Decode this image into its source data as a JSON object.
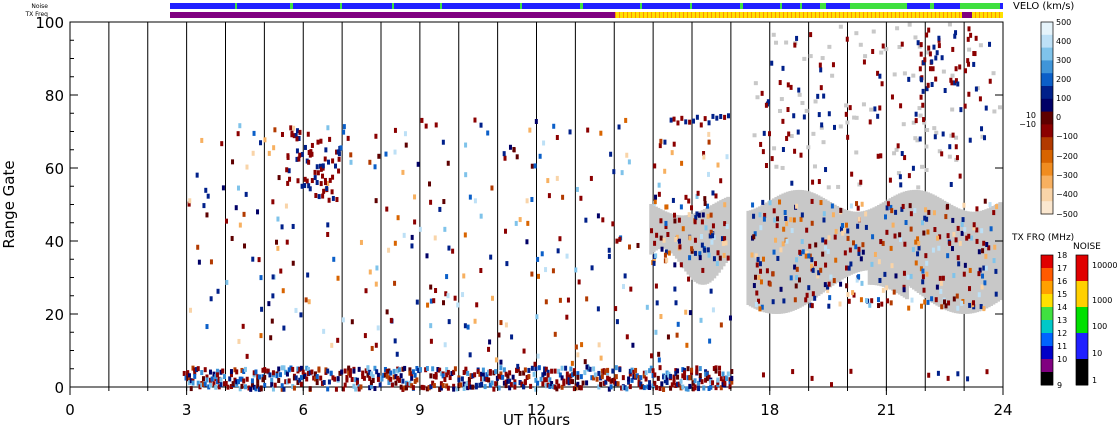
{
  "strips": {
    "noise_label": "Noise",
    "txfreq_label": "TX Freq"
  },
  "chart_data": {
    "type": "heatmap",
    "xlabel": "UT hours",
    "ylabel": "Range Gate",
    "xlim": [
      0,
      24
    ],
    "ylim": [
      0,
      100
    ],
    "x_ticks": [
      "0",
      "3",
      "6",
      "9",
      "12",
      "15",
      "18",
      "21",
      "24"
    ],
    "y_ticks": [
      "0",
      "20",
      "40",
      "60",
      "80",
      "100"
    ],
    "velocity_colorbar": {
      "title": "VELO (km/s)",
      "ticks": [
        "500",
        "400",
        "300",
        "200",
        "100",
        "0",
        "10",
        "−10",
        "−100",
        "−200",
        "−300",
        "−400",
        "−500"
      ],
      "colors": [
        "#e6f4fb",
        "#bde0f6",
        "#7fc3ea",
        "#3f95d9",
        "#0b5fc8",
        "#00208a",
        "#000066",
        "#5e0000",
        "#8b0000",
        "#b23a00",
        "#d86400",
        "#f08c20",
        "#f7b060",
        "#f9d4a8",
        "#fbe7cf"
      ],
      "ground_scatter_color": "#c8c8c8"
    },
    "txfreq_colorbar": {
      "title": "TX FRQ (MHz)",
      "ticks": [
        "18",
        "17",
        "16",
        "15",
        "14",
        "13",
        "12",
        "11",
        "10",
        "9"
      ],
      "colors": [
        "#e00000",
        "#ff5a00",
        "#ffa000",
        "#ffe000",
        "#40e040",
        "#00c8c8",
        "#0064ff",
        "#0000c8",
        "#800080",
        "#000000"
      ]
    },
    "noise_colorbar": {
      "title": "NOISE",
      "ticks": [
        "10000",
        "1000",
        "100",
        "10",
        "1"
      ],
      "colors": [
        "#e00000",
        "#ffd000",
        "#00e000",
        "#2020ff",
        "#000000"
      ]
    }
  }
}
